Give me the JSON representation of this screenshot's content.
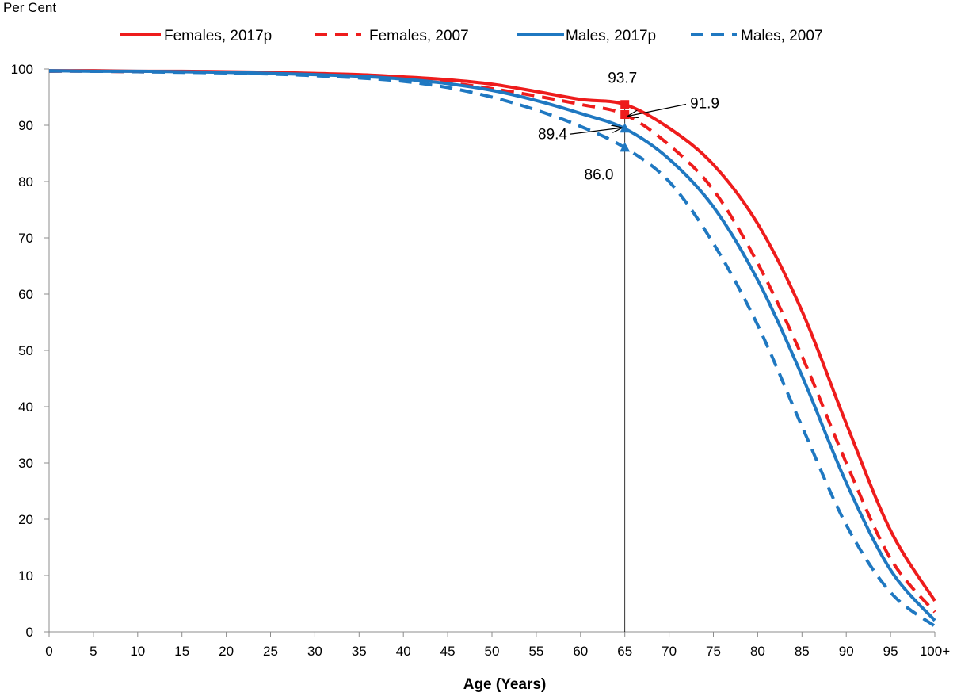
{
  "chart_data": {
    "type": "line",
    "ylabel": "Per Cent",
    "xlabel": "Age (Years)",
    "xlim": [
      0,
      100
    ],
    "ylim": [
      0,
      100
    ],
    "x_ticks": [
      0,
      5,
      10,
      15,
      20,
      25,
      30,
      35,
      40,
      45,
      50,
      55,
      60,
      65,
      70,
      75,
      80,
      85,
      90,
      95,
      100
    ],
    "x_tick_labels": [
      "0",
      "5",
      "10",
      "15",
      "20",
      "25",
      "30",
      "35",
      "40",
      "45",
      "50",
      "55",
      "60",
      "65",
      "70",
      "75",
      "80",
      "85",
      "90",
      "95",
      "100+"
    ],
    "y_ticks": [
      0,
      10,
      20,
      30,
      40,
      50,
      60,
      70,
      80,
      90,
      100
    ],
    "y_tick_labels": [
      "0",
      "10",
      "20",
      "30",
      "40",
      "50",
      "60",
      "70",
      "80",
      "90",
      "100"
    ],
    "legend_position": "top",
    "grid": false,
    "reference_line_x": 65,
    "series": [
      {
        "name": "Females, 2017p",
        "color": "#ee1c1c",
        "dash": "solid",
        "x": [
          0,
          5,
          10,
          15,
          20,
          25,
          30,
          35,
          40,
          45,
          50,
          55,
          60,
          65,
          70,
          75,
          80,
          85,
          90,
          95,
          100
        ],
        "y": [
          99.7,
          99.7,
          99.6,
          99.6,
          99.5,
          99.4,
          99.2,
          99.0,
          98.6,
          98.1,
          97.3,
          96.0,
          94.6,
          93.7,
          89.5,
          83.0,
          72.5,
          57.0,
          37.0,
          18.0,
          5.5
        ]
      },
      {
        "name": "Females, 2007",
        "color": "#ee1c1c",
        "dash": "dashed",
        "x": [
          0,
          5,
          10,
          15,
          20,
          25,
          30,
          35,
          40,
          45,
          50,
          55,
          60,
          65,
          70,
          75,
          80,
          85,
          90,
          95,
          100
        ],
        "y": [
          99.6,
          99.6,
          99.5,
          99.5,
          99.4,
          99.3,
          99.1,
          98.8,
          98.3,
          97.6,
          96.5,
          95.2,
          93.7,
          91.9,
          86.5,
          78.5,
          65.5,
          49.0,
          30.0,
          13.0,
          3.5
        ]
      },
      {
        "name": "Males, 2017p",
        "color": "#1f78c1",
        "dash": "solid",
        "x": [
          0,
          5,
          10,
          15,
          20,
          25,
          30,
          35,
          40,
          45,
          50,
          55,
          60,
          65,
          70,
          75,
          80,
          85,
          90,
          95,
          100
        ],
        "y": [
          99.7,
          99.6,
          99.6,
          99.5,
          99.4,
          99.2,
          99.0,
          98.7,
          98.2,
          97.4,
          96.2,
          94.4,
          92.1,
          89.4,
          84.0,
          75.5,
          62.5,
          45.5,
          26.5,
          11.0,
          2.0
        ]
      },
      {
        "name": "Males, 2007",
        "color": "#1f78c1",
        "dash": "dashed",
        "x": [
          0,
          5,
          10,
          15,
          20,
          25,
          30,
          35,
          40,
          45,
          50,
          55,
          60,
          65,
          70,
          75,
          80,
          85,
          90,
          95,
          100
        ],
        "y": [
          99.6,
          99.6,
          99.5,
          99.4,
          99.3,
          99.1,
          98.8,
          98.4,
          97.8,
          96.7,
          95.0,
          92.7,
          89.8,
          86.0,
          80.0,
          69.0,
          54.5,
          36.5,
          19.0,
          7.0,
          1.0
        ]
      }
    ],
    "annotations": [
      {
        "text": "93.7",
        "series": 0,
        "x": 65,
        "y": 93.7
      },
      {
        "text": "91.9",
        "series": 1,
        "x": 65,
        "y": 91.9
      },
      {
        "text": "89.4",
        "series": 2,
        "x": 65,
        "y": 89.4
      },
      {
        "text": "86.0",
        "series": 3,
        "x": 65,
        "y": 86.0
      }
    ]
  }
}
